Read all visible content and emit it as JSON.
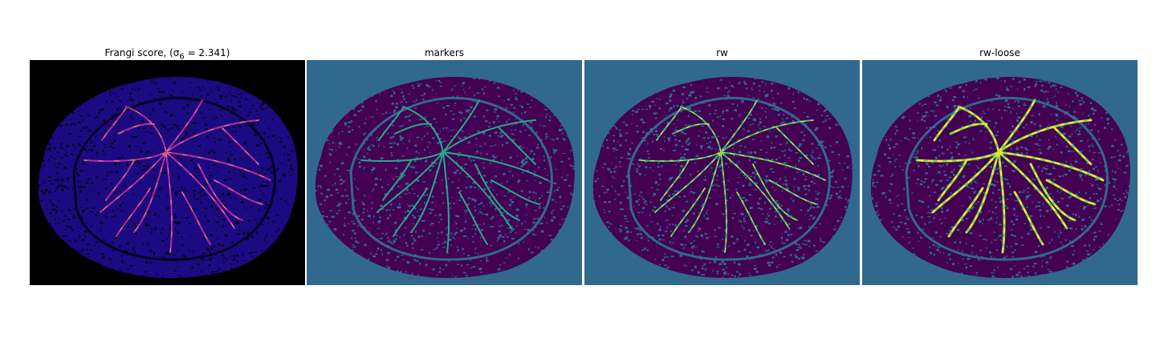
{
  "figure": {
    "panels": [
      {
        "id": "frangi",
        "title": "Frangi score, (σ",
        "title_sub": "6",
        "title_tail": " = 2.341)",
        "background": "#000000",
        "tissue": "#1c0a82",
        "texture": "#06031e",
        "vessel": "#b52c9c",
        "vessel_hi": "#f8a070",
        "palette": "plasma"
      },
      {
        "id": "markers",
        "title": "markers",
        "background": "#31688e",
        "tissue": "#440154",
        "texture": "#31688e",
        "vessel": "#26a98b",
        "palette": "viridis"
      },
      {
        "id": "rw",
        "title": "rw",
        "background": "#31688e",
        "tissue": "#440154",
        "texture": "#31688e",
        "vessel": "#35b779",
        "vessel_hi": "#fde725",
        "palette": "viridis"
      },
      {
        "id": "rw-loose",
        "title": "rw-loose",
        "background": "#31688e",
        "tissue": "#440154",
        "texture": "#31688e",
        "vessel": "#7ad151",
        "vessel_hi": "#fde725",
        "palette": "viridis"
      }
    ]
  }
}
